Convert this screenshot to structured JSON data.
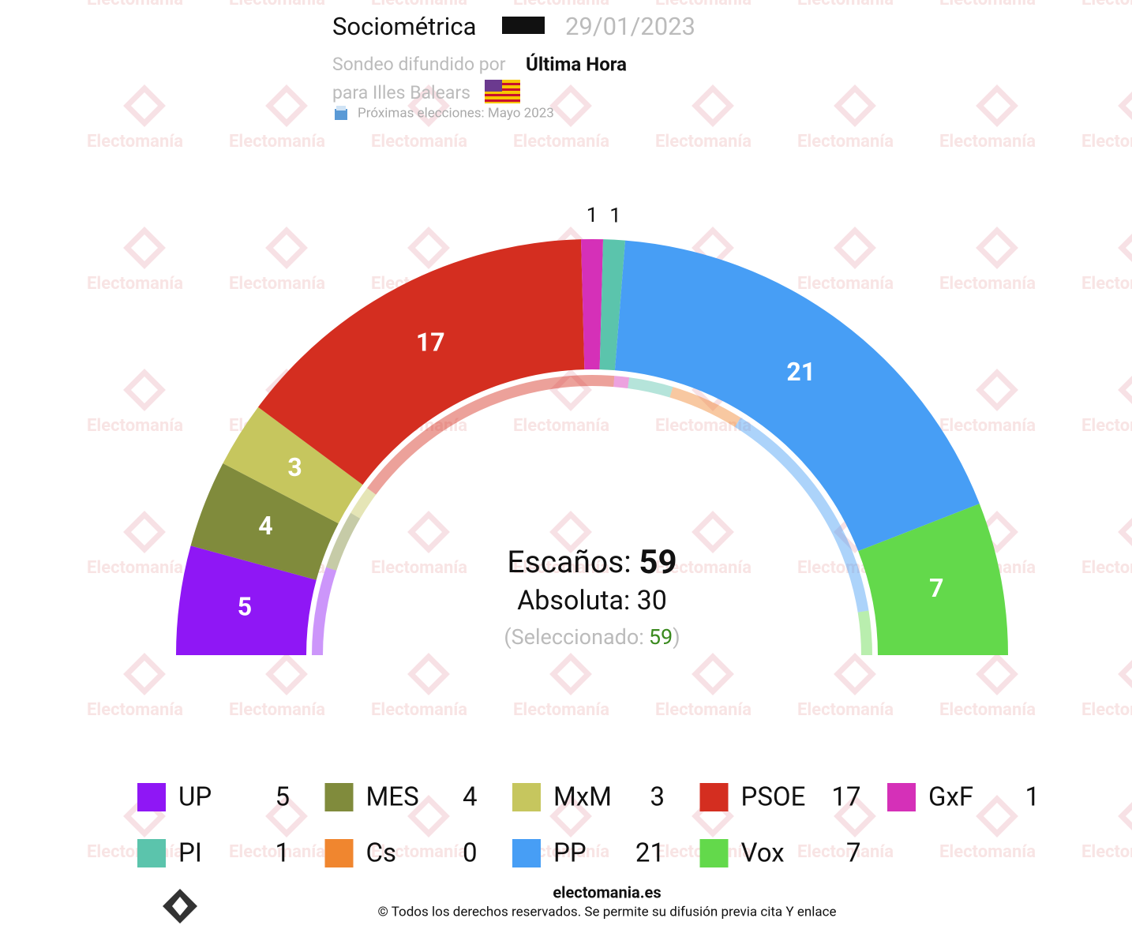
{
  "chart_data": {
    "type": "parliament",
    "pollster": "Sociométrica",
    "date": "29/01/2023",
    "published_by_label": "Sondeo difundido por",
    "published_by": "Última Hora",
    "region": "para Illes Balears",
    "next_elections": "Próximas elecciones: Mayo 2023",
    "watermark": "Electomanía",
    "seats_label": "Escaños:",
    "total_seats": 59,
    "majority_label": "Absoluta:",
    "majority": 30,
    "selected_open": "(Seleccionado:",
    "selected": 59,
    "selected_close": ")",
    "categories": [
      "UP",
      "MES",
      "MxM",
      "PSOE",
      "GxF",
      "PI",
      "Cs",
      "PP",
      "Vox"
    ],
    "colors": [
      "#8f17f5",
      "#808b3c",
      "#c6c65e",
      "#d42e20",
      "#d530b8",
      "#5bc4ac",
      "#f0862f",
      "#479ef5",
      "#63d94b"
    ],
    "values": [
      5,
      4,
      3,
      17,
      1,
      1,
      0,
      21,
      7
    ],
    "previous_values": [
      6,
      4,
      2,
      19,
      1,
      3,
      5,
      16,
      3
    ],
    "site": "electomania.es",
    "copyright": "© Todos los derechos reservados. Se permite su difusión previa cita Y enlace"
  }
}
